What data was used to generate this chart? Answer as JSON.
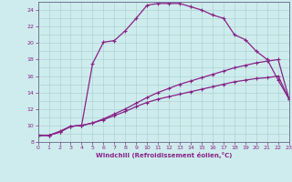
{
  "xlabel": "Windchill (Refroidissement éolien,°C)",
  "bg_color": "#ceeced",
  "grid_color": "#a8cccc",
  "line_color": "#882288",
  "spine_color": "#666688",
  "xlim": [
    0,
    23
  ],
  "ylim": [
    8,
    25
  ],
  "xticks": [
    0,
    1,
    2,
    3,
    4,
    5,
    6,
    7,
    8,
    9,
    10,
    11,
    12,
    13,
    14,
    15,
    16,
    17,
    18,
    19,
    20,
    21,
    22,
    23
  ],
  "yticks": [
    8,
    10,
    12,
    14,
    16,
    18,
    20,
    22,
    24
  ],
  "curve1_x": [
    0,
    1,
    2,
    3,
    4,
    5,
    6,
    7,
    8,
    9,
    10,
    11,
    12,
    13,
    14,
    15,
    16,
    17,
    18,
    19,
    20,
    21,
    22,
    23
  ],
  "curve1_y": [
    8.8,
    8.8,
    9.3,
    9.9,
    10.0,
    17.5,
    20.1,
    20.3,
    21.5,
    23.0,
    24.6,
    24.8,
    24.8,
    24.8,
    24.4,
    24.0,
    23.4,
    23.0,
    21.0,
    20.4,
    19.0,
    18.0,
    15.5,
    13.2
  ],
  "curve2_x": [
    0,
    1,
    2,
    3,
    4,
    5,
    6,
    7,
    8,
    9,
    10,
    11,
    12,
    13,
    14,
    15,
    16,
    17,
    18,
    19,
    20,
    21,
    22,
    23
  ],
  "curve2_y": [
    8.8,
    8.8,
    9.2,
    9.9,
    10.0,
    10.3,
    10.7,
    11.2,
    11.7,
    12.3,
    12.8,
    13.2,
    13.5,
    13.8,
    14.1,
    14.4,
    14.7,
    15.0,
    15.3,
    15.5,
    15.7,
    15.8,
    16.0,
    13.2
  ],
  "curve3_x": [
    0,
    1,
    2,
    3,
    4,
    5,
    6,
    7,
    8,
    9,
    10,
    11,
    12,
    13,
    14,
    15,
    16,
    17,
    18,
    19,
    20,
    21,
    22,
    23
  ],
  "curve3_y": [
    8.8,
    8.8,
    9.2,
    9.9,
    10.0,
    10.3,
    10.8,
    11.4,
    12.0,
    12.7,
    13.4,
    14.0,
    14.5,
    15.0,
    15.4,
    15.8,
    16.2,
    16.6,
    17.0,
    17.3,
    17.6,
    17.8,
    18.0,
    13.2
  ]
}
